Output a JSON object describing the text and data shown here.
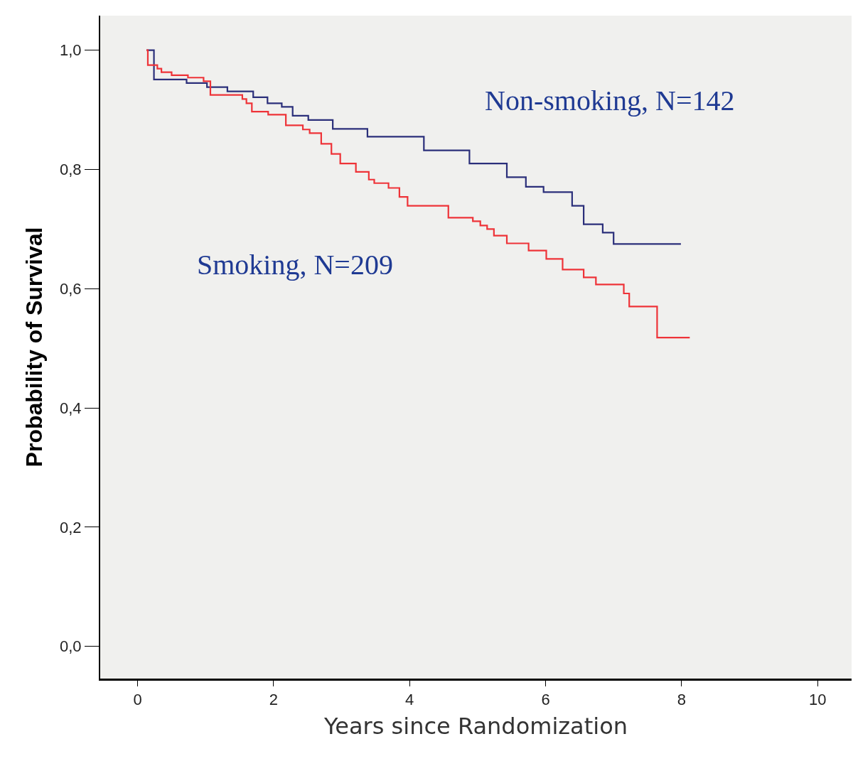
{
  "chart_data": {
    "type": "step",
    "xlabel": "Years since Randomization",
    "ylabel": "Probability of Survival",
    "xlim": [
      -0.55,
      10.5
    ],
    "ylim": [
      -0.054,
      1.058
    ],
    "xticks": [
      0,
      2,
      4,
      6,
      8,
      10
    ],
    "yticks": [
      {
        "value": 0,
        "label": "0,0"
      },
      {
        "value": 0.2,
        "label": "0,2"
      },
      {
        "value": 0.4,
        "label": "0,4"
      },
      {
        "value": 0.6,
        "label": "0,6"
      },
      {
        "value": 0.8,
        "label": "0,8"
      },
      {
        "value": 1.0,
        "label": "1,0"
      }
    ],
    "grid": false,
    "legend": false,
    "marker": "none",
    "line_style": "solid",
    "series": [
      {
        "name": "Non-smoking, N=142",
        "color": "#2b2f7a",
        "x": [
          0.13,
          0.24,
          0.72,
          1.02,
          1.32,
          1.7,
          1.91,
          2.12,
          2.28,
          2.51,
          2.87,
          3.38,
          4.21,
          4.88,
          5.43,
          5.71,
          5.97,
          6.39,
          6.56,
          6.84,
          7.0,
          7.99
        ],
        "values": [
          1.0,
          0.951,
          0.945,
          0.938,
          0.931,
          0.921,
          0.911,
          0.905,
          0.89,
          0.883,
          0.868,
          0.855,
          0.832,
          0.81,
          0.787,
          0.771,
          0.762,
          0.739,
          0.708,
          0.694,
          0.675,
          0.675
        ]
      },
      {
        "name": "Smoking, N=209",
        "color": "#ee3338",
        "x": [
          0.13,
          0.15,
          0.29,
          0.35,
          0.5,
          0.74,
          0.97,
          1.07,
          1.54,
          1.6,
          1.68,
          1.92,
          2.18,
          2.43,
          2.53,
          2.7,
          2.85,
          2.98,
          3.21,
          3.4,
          3.48,
          3.69,
          3.85,
          3.97,
          4.57,
          4.93,
          5.04,
          5.14,
          5.24,
          5.43,
          5.75,
          6.01,
          6.25,
          6.56,
          6.74,
          7.15,
          7.23,
          7.64,
          8.12
        ],
        "values": [
          1.0,
          0.975,
          0.969,
          0.963,
          0.958,
          0.954,
          0.948,
          0.925,
          0.918,
          0.911,
          0.897,
          0.892,
          0.874,
          0.867,
          0.861,
          0.843,
          0.826,
          0.81,
          0.796,
          0.783,
          0.777,
          0.769,
          0.754,
          0.739,
          0.719,
          0.713,
          0.706,
          0.7,
          0.689,
          0.676,
          0.664,
          0.65,
          0.632,
          0.619,
          0.607,
          0.592,
          0.57,
          0.518,
          0.518
        ]
      }
    ]
  }
}
